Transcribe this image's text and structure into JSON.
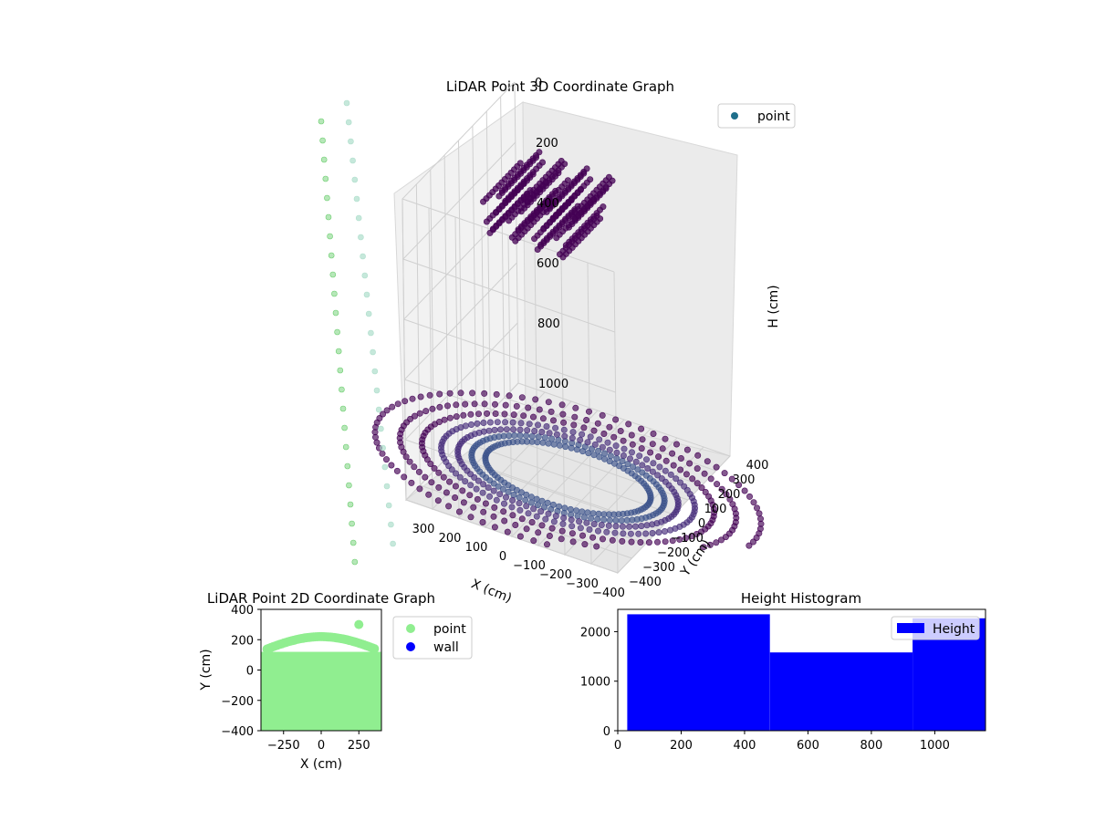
{
  "chart_data": [
    {
      "type": "scatter",
      "projection": "3d",
      "title": "LiDAR Point 3D Coordinate Graph",
      "xlabel": "X (cm)",
      "ylabel": "Y (cm)",
      "zlabel": "H (cm)",
      "xlim": [
        -400,
        400
      ],
      "ylim": [
        -400,
        400
      ],
      "zlim": [
        0,
        1000
      ],
      "z_inverted": true,
      "xticks": [
        "−400",
        "−300",
        "−200",
        "−100",
        "0",
        "100",
        "200",
        "300"
      ],
      "yticks": [
        "−400",
        "−300",
        "−200",
        "−100",
        "0",
        "100",
        "200",
        "300",
        "400"
      ],
      "zticks": [
        "0",
        "200",
        "400",
        "600",
        "800",
        "1000"
      ],
      "legend": {
        "position": "top-right",
        "entries": [
          "point"
        ]
      },
      "grid": true,
      "colormap": "viridis (colored by height)",
      "series": [
        {
          "name": "point",
          "color": "#1f6f8b",
          "rings": {
            "description": "ground returns forming concentric arcs",
            "radii_cm": [
              300,
              350,
              400,
              460,
              530,
              610,
              700
            ],
            "height_cm": 1000
          },
          "ceiling_patch": {
            "x_range_cm": [
              -120,
              230
            ],
            "y_range_cm": [
              -150,
              120
            ],
            "height_range_cm": [
              20,
              280
            ]
          },
          "colors": [
            "#440154",
            "#472d7b",
            "#3b528b",
            "#6b82b0",
            "#5ec962",
            "#a8dcc8"
          ]
        }
      ]
    },
    {
      "type": "scatter",
      "title": "LiDAR Point 2D Coordinate Graph",
      "xlabel": "X (cm)",
      "ylabel": "Y (cm)",
      "xlim": [
        -400,
        400
      ],
      "ylim": [
        -400,
        400
      ],
      "xticks": [
        "−250",
        "0",
        "250"
      ],
      "yticks": [
        "−400",
        "−200",
        "0",
        "200",
        "400"
      ],
      "legend": {
        "position": "outside-right",
        "entries": [
          "point",
          "wall"
        ]
      },
      "grid": false,
      "series": [
        {
          "name": "point",
          "color": "#90ee90",
          "filled_region": {
            "x_range": [
              -400,
              400
            ],
            "y_range": [
              -400,
              200
            ]
          }
        },
        {
          "name": "wall",
          "color": "#0000ff"
        }
      ]
    },
    {
      "type": "bar",
      "title": "Height Histogram",
      "legend": {
        "position": "top-right",
        "entries": [
          "Height"
        ]
      },
      "xlim": [
        0,
        1160
      ],
      "ylim": [
        0,
        2450
      ],
      "xticks": [
        "0",
        "200",
        "400",
        "600",
        "800",
        "1000"
      ],
      "yticks": [
        "0",
        "1000",
        "2000"
      ],
      "series": [
        {
          "name": "Height",
          "color": "#0000ff",
          "bins": [
            {
              "x0": 30,
              "x1": 480,
              "count": 2350
            },
            {
              "x0": 480,
              "x1": 930,
              "count": 1580
            },
            {
              "x0": 930,
              "x1": 1160,
              "count": 2270
            }
          ]
        }
      ]
    }
  ]
}
